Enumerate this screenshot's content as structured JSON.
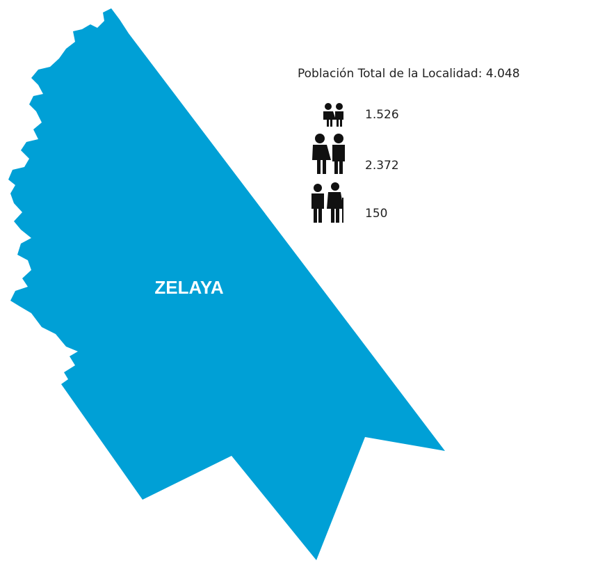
{
  "map": {
    "region": "ZELAYA",
    "title": "Población Total de la Localidad:",
    "total": "4.048",
    "groups": [
      {
        "value": "1.526"
      },
      {
        "value": "2.372"
      },
      {
        "value": "150"
      }
    ]
  }
}
